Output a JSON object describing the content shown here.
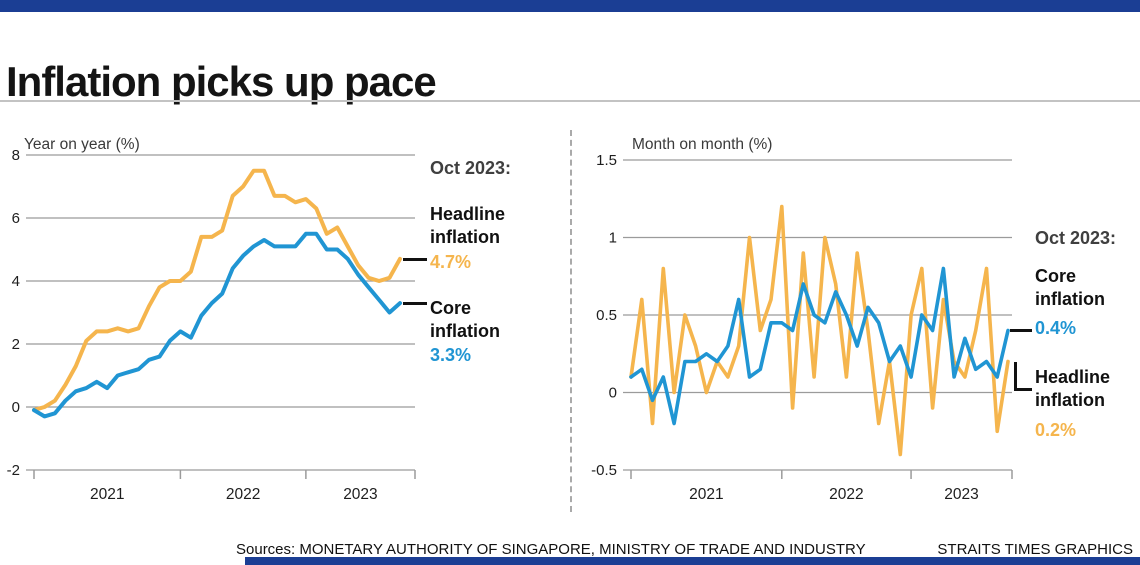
{
  "header": {
    "title": "Inflation picks up pace"
  },
  "footer": {
    "sources": "Sources: MONETARY AUTHORITY OF SINGAPORE, MINISTRY OF TRADE AND INDUSTRY",
    "credit": "STRAITS TIMES GRAPHICS"
  },
  "colors": {
    "navy": "#1B3E94",
    "headline": "#F5B54D",
    "core": "#2095D3"
  },
  "chart_data": [
    {
      "type": "line",
      "title": "Year on year inflation",
      "ylabel": "Year on year (%)",
      "xlabel": "",
      "ylim": [
        -2,
        8
      ],
      "yticks": [
        8,
        6,
        4,
        2,
        0,
        -2
      ],
      "grid": "horizontal",
      "legend": "right-annotation",
      "x_year_labels": [
        "2021",
        "2022",
        "2023"
      ],
      "x": [
        "2020-11",
        "2020-12",
        "2021-01",
        "2021-02",
        "2021-03",
        "2021-04",
        "2021-05",
        "2021-06",
        "2021-07",
        "2021-08",
        "2021-09",
        "2021-10",
        "2021-11",
        "2021-12",
        "2022-01",
        "2022-02",
        "2022-03",
        "2022-04",
        "2022-05",
        "2022-06",
        "2022-07",
        "2022-08",
        "2022-09",
        "2022-10",
        "2022-11",
        "2022-12",
        "2023-01",
        "2023-02",
        "2023-03",
        "2023-04",
        "2023-05",
        "2023-06",
        "2023-07",
        "2023-08",
        "2023-09",
        "2023-10"
      ],
      "series": [
        {
          "name": "Headline inflation",
          "color": "#F5B54D",
          "values": [
            -0.1,
            0.0,
            0.2,
            0.7,
            1.3,
            2.1,
            2.4,
            2.4,
            2.5,
            2.4,
            2.5,
            3.2,
            3.8,
            4.0,
            4.0,
            4.3,
            5.4,
            5.4,
            5.6,
            6.7,
            7.0,
            7.5,
            7.5,
            6.7,
            6.7,
            6.5,
            6.6,
            6.3,
            5.5,
            5.7,
            5.1,
            4.5,
            4.1,
            4.0,
            4.1,
            4.7
          ]
        },
        {
          "name": "Core inflation",
          "color": "#2095D3",
          "values": [
            -0.1,
            -0.3,
            -0.2,
            0.2,
            0.5,
            0.6,
            0.8,
            0.6,
            1.0,
            1.1,
            1.2,
            1.5,
            1.6,
            2.1,
            2.4,
            2.2,
            2.9,
            3.3,
            3.6,
            4.4,
            4.8,
            5.1,
            5.3,
            5.1,
            5.1,
            5.1,
            5.5,
            5.5,
            5.0,
            5.0,
            4.7,
            4.2,
            3.8,
            3.4,
            3.0,
            3.3
          ]
        }
      ],
      "annotation": {
        "heading": "Oct 2023:",
        "items": [
          {
            "label": "Headline inflation",
            "value": "4.7%"
          },
          {
            "label": "Core inflation",
            "value": "3.3%"
          }
        ]
      }
    },
    {
      "type": "line",
      "title": "Month on month inflation",
      "ylabel": "Month on month (%)",
      "xlabel": "",
      "ylim": [
        -0.5,
        1.5
      ],
      "yticks": [
        1.5,
        1,
        0.5,
        0,
        -0.5
      ],
      "grid": "horizontal",
      "legend": "right-annotation",
      "x_year_labels": [
        "2021",
        "2022",
        "2023"
      ],
      "x": [
        "2020-11",
        "2020-12",
        "2021-01",
        "2021-02",
        "2021-03",
        "2021-04",
        "2021-05",
        "2021-06",
        "2021-07",
        "2021-08",
        "2021-09",
        "2021-10",
        "2021-11",
        "2021-12",
        "2022-01",
        "2022-02",
        "2022-03",
        "2022-04",
        "2022-05",
        "2022-06",
        "2022-07",
        "2022-08",
        "2022-09",
        "2022-10",
        "2022-11",
        "2022-12",
        "2023-01",
        "2023-02",
        "2023-03",
        "2023-04",
        "2023-05",
        "2023-06",
        "2023-07",
        "2023-08",
        "2023-09",
        "2023-10"
      ],
      "series": [
        {
          "name": "Headline inflation",
          "color": "#F5B54D",
          "values": [
            0.1,
            0.6,
            -0.2,
            0.8,
            0.0,
            0.5,
            0.3,
            0.0,
            0.2,
            0.1,
            0.3,
            1.0,
            0.4,
            0.6,
            1.2,
            -0.1,
            0.9,
            0.1,
            1.0,
            0.7,
            0.1,
            0.9,
            0.4,
            -0.2,
            0.2,
            -0.4,
            0.5,
            0.8,
            -0.1,
            0.6,
            0.2,
            0.1,
            0.4,
            0.8,
            -0.25,
            0.2
          ]
        },
        {
          "name": "Core inflation",
          "color": "#2095D3",
          "values": [
            0.1,
            0.15,
            -0.05,
            0.1,
            -0.2,
            0.2,
            0.2,
            0.25,
            0.2,
            0.3,
            0.6,
            0.1,
            0.15,
            0.45,
            0.45,
            0.4,
            0.7,
            0.5,
            0.45,
            0.65,
            0.5,
            0.3,
            0.55,
            0.45,
            0.2,
            0.3,
            0.1,
            0.5,
            0.4,
            0.8,
            0.1,
            0.35,
            0.15,
            0.2,
            0.1,
            0.4
          ]
        }
      ],
      "annotation": {
        "heading": "Oct 2023:",
        "items": [
          {
            "label": "Core inflation",
            "value": "0.4%"
          },
          {
            "label": "Headline inflation",
            "value": "0.2%"
          }
        ]
      }
    }
  ]
}
